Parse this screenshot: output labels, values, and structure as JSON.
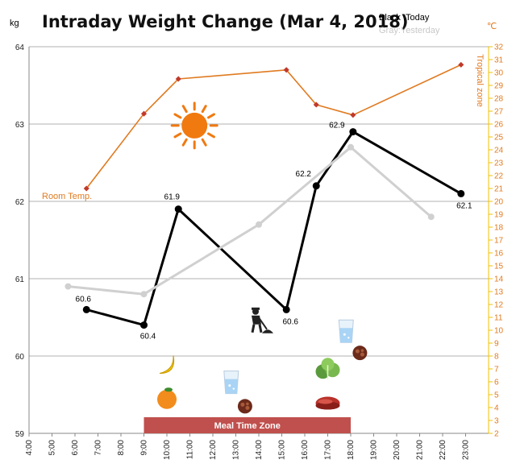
{
  "chart_data": {
    "type": "line",
    "title": "Intraday Weight Change (Mar 4, 2018)",
    "legend": {
      "today": "Black :Today",
      "yesterday": "Gray:Yesterday",
      "placement": "top-right"
    },
    "y_left": {
      "unit": "kg",
      "min": 59,
      "max": 64,
      "ticks": [
        "59",
        "60",
        "61",
        "62",
        "63",
        "64"
      ]
    },
    "y_right": {
      "unit": "℃",
      "min": 2,
      "max": 32,
      "ticks": [
        "2",
        "3",
        "4",
        "5",
        "6",
        "7",
        "8",
        "9",
        "10",
        "11",
        "12",
        "13",
        "14",
        "15",
        "16",
        "17",
        "18",
        "19",
        "20",
        "21",
        "22",
        "23",
        "24",
        "25",
        "26",
        "27",
        "28",
        "29",
        "30",
        "31",
        "32"
      ]
    },
    "x": {
      "min": 4,
      "max": 24,
      "ticks": [
        "4:00",
        "5:00",
        "6:00",
        "7:00",
        "8:00",
        "9:00",
        "10:00",
        "11:00",
        "12:00",
        "13:00",
        "14:00",
        "15:00",
        "16:00",
        "17:00",
        "18:00",
        "19:00",
        "20:00",
        "21:00",
        "22:00",
        "23:00"
      ]
    },
    "grid": true,
    "series": [
      {
        "name": "Today",
        "color": "#000000",
        "points": [
          {
            "x": 6.5,
            "y": 60.6,
            "label": "60.6"
          },
          {
            "x": 9.0,
            "y": 60.4,
            "label": "60.4"
          },
          {
            "x": 10.5,
            "y": 61.9,
            "label": "61.9"
          },
          {
            "x": 15.2,
            "y": 60.6,
            "label": "60.6"
          },
          {
            "x": 16.5,
            "y": 62.2,
            "label": "62.2"
          },
          {
            "x": 18.1,
            "y": 62.9,
            "label": "62.9"
          },
          {
            "x": 22.8,
            "y": 62.1,
            "label": "62.1"
          }
        ]
      },
      {
        "name": "Yesterday",
        "color": "#d0d0d0",
        "points": [
          {
            "x": 5.7,
            "y": 60.9
          },
          {
            "x": 9.0,
            "y": 60.8
          },
          {
            "x": 14.0,
            "y": 61.7
          },
          {
            "x": 18.0,
            "y": 62.7
          },
          {
            "x": 21.5,
            "y": 61.8
          }
        ]
      },
      {
        "name": "Room Temp.",
        "color": "#e07a20",
        "axis": "right",
        "points": [
          {
            "x": 6.5,
            "y": 21.0
          },
          {
            "x": 9.0,
            "y": 26.8
          },
          {
            "x": 10.5,
            "y": 29.5
          },
          {
            "x": 15.2,
            "y": 30.2
          },
          {
            "x": 16.5,
            "y": 27.5
          },
          {
            "x": 18.1,
            "y": 26.7
          },
          {
            "x": 22.8,
            "y": 30.6
          }
        ]
      }
    ],
    "annotations": {
      "room_temp": "Room Temp.",
      "tropical_zone": "Tropical zone",
      "meal_zone": {
        "label": "Meal Time Zone",
        "x_start": 9.0,
        "x_end": 18.0,
        "color": "#c0504d"
      }
    },
    "icons": [
      {
        "name": "sun-icon",
        "x": 11.2,
        "y": 62.98
      },
      {
        "name": "banana-icon",
        "x": 10.0,
        "y": 59.88
      },
      {
        "name": "orange-icon",
        "x": 10.0,
        "y": 59.45
      },
      {
        "name": "water-glass-icon",
        "x": 12.8,
        "y": 59.66
      },
      {
        "name": "chocolate-icon",
        "x": 13.4,
        "y": 59.35
      },
      {
        "name": "gardener-icon",
        "x": 14.0,
        "y": 60.45
      },
      {
        "name": "lettuce-icon",
        "x": 17.0,
        "y": 59.82
      },
      {
        "name": "steak-icon",
        "x": 17.0,
        "y": 59.39
      },
      {
        "name": "water-glass-icon",
        "x": 17.8,
        "y": 60.32
      },
      {
        "name": "chocolate-icon",
        "x": 18.4,
        "y": 60.04
      }
    ]
  }
}
